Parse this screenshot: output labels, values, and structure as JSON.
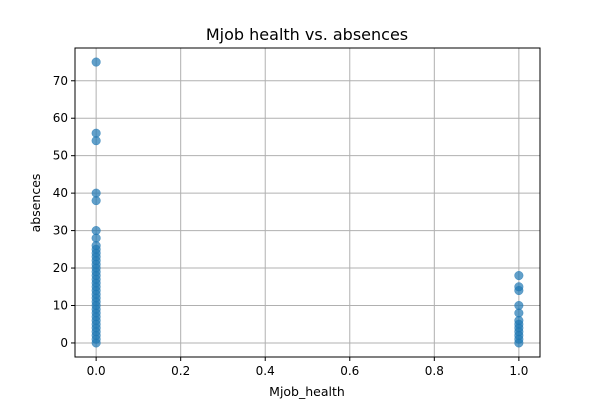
{
  "chart_data": {
    "type": "scatter",
    "title": "Mjob health vs. absences",
    "xlabel": "Mjob_health",
    "ylabel": "absences",
    "xlim": [
      -0.05,
      1.05
    ],
    "ylim": [
      -3.75,
      78.75
    ],
    "xticks": [
      0.0,
      0.2,
      0.4,
      0.6,
      0.8,
      1.0
    ],
    "xtick_labels": [
      "0.0",
      "0.2",
      "0.4",
      "0.6",
      "0.8",
      "1.0"
    ],
    "yticks": [
      0,
      10,
      20,
      30,
      40,
      50,
      60,
      70
    ],
    "ytick_labels": [
      "0",
      "10",
      "20",
      "30",
      "40",
      "50",
      "60",
      "70"
    ],
    "grid": true,
    "marker_color": "#1f77b4",
    "marker_alpha": 0.7,
    "points": [
      {
        "x": 0,
        "y": 0
      },
      {
        "x": 0,
        "y": 1
      },
      {
        "x": 0,
        "y": 2
      },
      {
        "x": 0,
        "y": 3
      },
      {
        "x": 0,
        "y": 4
      },
      {
        "x": 0,
        "y": 5
      },
      {
        "x": 0,
        "y": 6
      },
      {
        "x": 0,
        "y": 7
      },
      {
        "x": 0,
        "y": 8
      },
      {
        "x": 0,
        "y": 9
      },
      {
        "x": 0,
        "y": 10
      },
      {
        "x": 0,
        "y": 11
      },
      {
        "x": 0,
        "y": 12
      },
      {
        "x": 0,
        "y": 13
      },
      {
        "x": 0,
        "y": 14
      },
      {
        "x": 0,
        "y": 15
      },
      {
        "x": 0,
        "y": 16
      },
      {
        "x": 0,
        "y": 17
      },
      {
        "x": 0,
        "y": 18
      },
      {
        "x": 0,
        "y": 19
      },
      {
        "x": 0,
        "y": 20
      },
      {
        "x": 0,
        "y": 21
      },
      {
        "x": 0,
        "y": 22
      },
      {
        "x": 0,
        "y": 23
      },
      {
        "x": 0,
        "y": 24
      },
      {
        "x": 0,
        "y": 25
      },
      {
        "x": 0,
        "y": 26
      },
      {
        "x": 0,
        "y": 28
      },
      {
        "x": 0,
        "y": 30
      },
      {
        "x": 0,
        "y": 38
      },
      {
        "x": 0,
        "y": 40
      },
      {
        "x": 0,
        "y": 54
      },
      {
        "x": 0,
        "y": 56
      },
      {
        "x": 0,
        "y": 75
      },
      {
        "x": 1,
        "y": 0
      },
      {
        "x": 1,
        "y": 1
      },
      {
        "x": 1,
        "y": 2
      },
      {
        "x": 1,
        "y": 3
      },
      {
        "x": 1,
        "y": 4
      },
      {
        "x": 1,
        "y": 5
      },
      {
        "x": 1,
        "y": 6
      },
      {
        "x": 1,
        "y": 8
      },
      {
        "x": 1,
        "y": 10
      },
      {
        "x": 1,
        "y": 14
      },
      {
        "x": 1,
        "y": 15
      },
      {
        "x": 1,
        "y": 18
      }
    ]
  }
}
